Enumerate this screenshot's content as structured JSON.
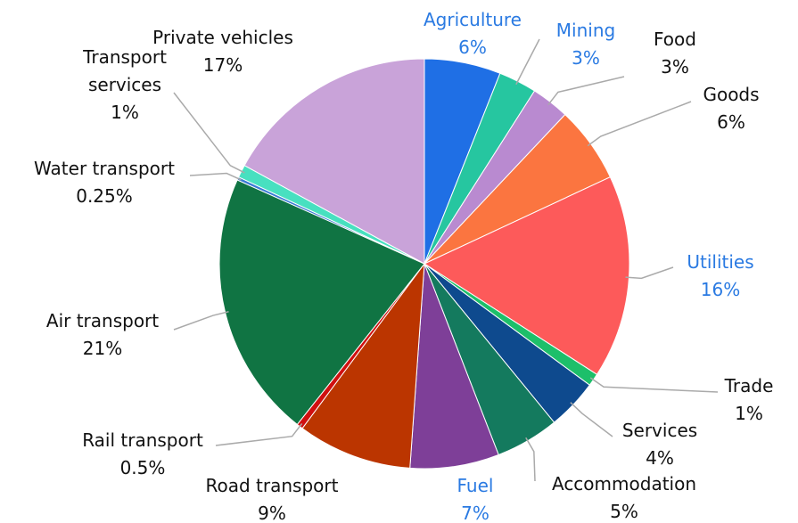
{
  "chart_data": {
    "type": "pie",
    "categories": [
      "Agriculture",
      "Mining",
      "Food",
      "Goods",
      "Utilities",
      "Trade",
      "Services",
      "Accommodation",
      "Fuel",
      "Road transport",
      "Rail transport",
      "Air transport",
      "Water transport",
      "Transport services",
      "Private vehicles"
    ],
    "values": [
      6,
      3,
      3,
      6,
      16,
      1,
      4,
      5,
      7,
      9,
      0.5,
      21,
      0.25,
      1,
      17
    ],
    "value_labels": [
      "6%",
      "3%",
      "3%",
      "6%",
      "16%",
      "1%",
      "4%",
      "5%",
      "7%",
      "9%",
      "0.5%",
      "21%",
      "0.25%",
      "1%",
      "17%"
    ],
    "colors": [
      "#1f6fe5",
      "#26c6a0",
      "#b98ad0",
      "#fb7540",
      "#fd5a5a",
      "#1dbf6a",
      "#0e4a8e",
      "#147a5e",
      "#7e3f98",
      "#bb3500",
      "#d01010",
      "#107443",
      "#3a7bd5",
      "#48e0c0",
      "#c9a3d9"
    ],
    "label_colors": [
      "#2a7ae2",
      "#2a7ae2",
      "#111111",
      "#111111",
      "#2a7ae2",
      "#111111",
      "#111111",
      "#111111",
      "#2a7ae2",
      "#111111",
      "#111111",
      "#111111",
      "#111111",
      "#111111",
      "#111111"
    ]
  }
}
